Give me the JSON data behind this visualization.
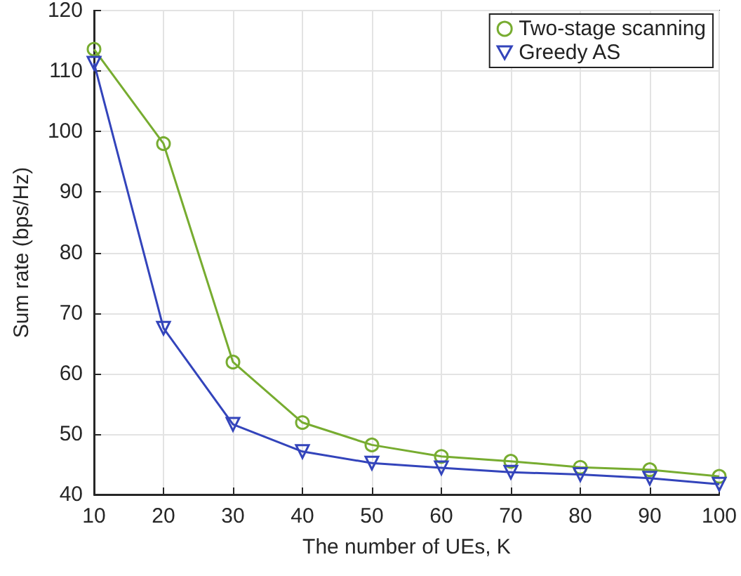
{
  "chart_data": {
    "type": "line",
    "xlabel": "The number of UEs, K",
    "ylabel": "Sum rate (bps/Hz)",
    "x": [
      10,
      20,
      30,
      40,
      50,
      60,
      70,
      80,
      90,
      100
    ],
    "series": [
      {
        "name": "Two-stage scanning",
        "color": "#77ac30",
        "marker": "circle",
        "values": [
          113.6,
          98.0,
          61.9,
          51.9,
          48.2,
          46.3,
          45.5,
          44.5,
          44.1,
          43.0
        ]
      },
      {
        "name": "Greedy AS",
        "color": "#3344bb",
        "marker": "triangle",
        "values": [
          111.3,
          67.5,
          51.6,
          47.1,
          45.2,
          44.4,
          43.7,
          43.3,
          42.7,
          41.7
        ]
      }
    ],
    "xlim": [
      10,
      100
    ],
    "xticks": [
      10,
      20,
      30,
      40,
      50,
      60,
      70,
      80,
      90,
      100
    ],
    "ylim": [
      40,
      120
    ],
    "yticks": [
      40,
      50,
      60,
      70,
      80,
      90,
      100,
      110,
      120
    ],
    "grid": true,
    "legend": "top right",
    "line_style": "solid"
  }
}
